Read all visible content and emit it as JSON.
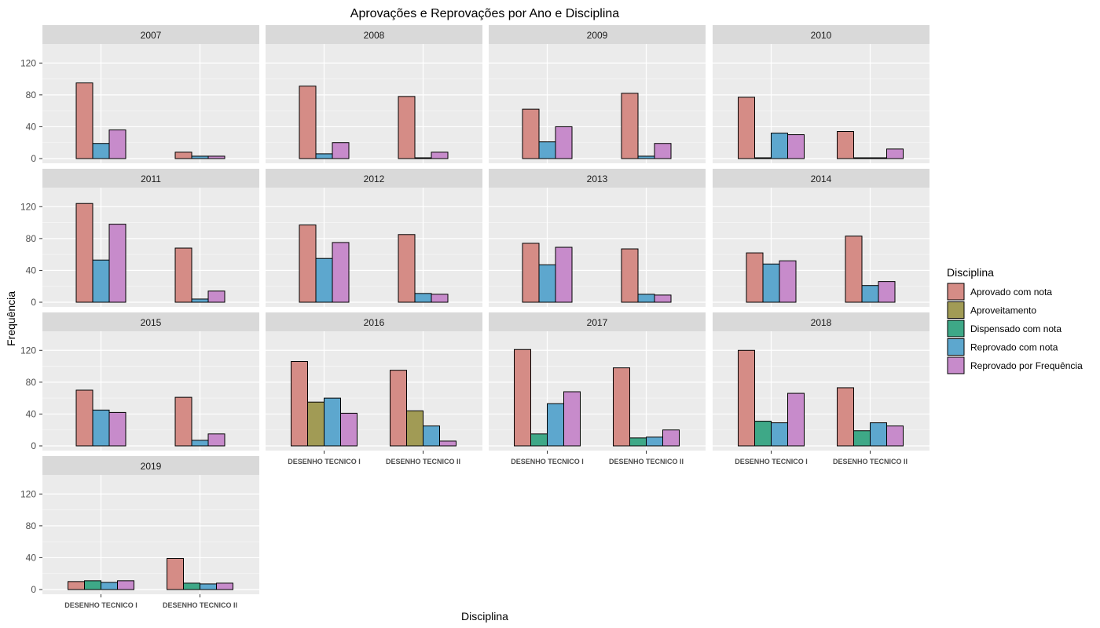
{
  "chart_data": {
    "type": "bar",
    "title": "Aprovações e Reprovações por Ano e Disciplina",
    "xlabel": "Disciplina",
    "ylabel": "Frequência",
    "ylim": [
      0,
      140
    ],
    "yticks": [
      0,
      40,
      80,
      120
    ],
    "grid": true,
    "legend_title": "Disciplina",
    "legend_position": "right",
    "categories": [
      "DESENHO TECNICO I",
      "DESENHO TECNICO II"
    ],
    "series_defs": [
      {
        "name": "Aprovado com nota",
        "color": "#D58C86"
      },
      {
        "name": "Aproveitamento",
        "color": "#A19B55"
      },
      {
        "name": "Dispensado com nota",
        "color": "#3EA887"
      },
      {
        "name": "Reprovado com nota",
        "color": "#5DA7CE"
      },
      {
        "name": "Reprovado por Frequência",
        "color": "#C78BCB"
      }
    ],
    "panels": [
      {
        "year": "2007",
        "bars": [
          [
            [
              0,
              95
            ],
            [
              3,
              19
            ],
            [
              4,
              36
            ]
          ],
          [
            [
              0,
              8
            ],
            [
              3,
              3
            ],
            [
              4,
              3
            ]
          ]
        ]
      },
      {
        "year": "2008",
        "bars": [
          [
            [
              0,
              91
            ],
            [
              3,
              6
            ],
            [
              4,
              20
            ]
          ],
          [
            [
              0,
              78
            ],
            [
              3,
              1
            ],
            [
              4,
              8
            ]
          ]
        ]
      },
      {
        "year": "2009",
        "bars": [
          [
            [
              0,
              62
            ],
            [
              3,
              21
            ],
            [
              4,
              40
            ]
          ],
          [
            [
              0,
              82
            ],
            [
              3,
              3
            ],
            [
              4,
              19
            ]
          ]
        ]
      },
      {
        "year": "2010",
        "bars": [
          [
            [
              0,
              77
            ],
            [
              2,
              1
            ],
            [
              3,
              32
            ],
            [
              4,
              30
            ]
          ],
          [
            [
              0,
              34
            ],
            [
              2,
              1
            ],
            [
              3,
              1
            ],
            [
              4,
              12
            ]
          ]
        ]
      },
      {
        "year": "2011",
        "bars": [
          [
            [
              0,
              124
            ],
            [
              3,
              53
            ],
            [
              4,
              98
            ]
          ],
          [
            [
              0,
              68
            ],
            [
              3,
              4
            ],
            [
              4,
              14
            ]
          ]
        ]
      },
      {
        "year": "2012",
        "bars": [
          [
            [
              0,
              97
            ],
            [
              3,
              55
            ],
            [
              4,
              75
            ]
          ],
          [
            [
              0,
              85
            ],
            [
              3,
              11
            ],
            [
              4,
              10
            ]
          ]
        ]
      },
      {
        "year": "2013",
        "bars": [
          [
            [
              0,
              74
            ],
            [
              3,
              47
            ],
            [
              4,
              69
            ]
          ],
          [
            [
              0,
              67
            ],
            [
              3,
              10
            ],
            [
              4,
              9
            ]
          ]
        ]
      },
      {
        "year": "2014",
        "bars": [
          [
            [
              0,
              62
            ],
            [
              3,
              48
            ],
            [
              4,
              52
            ]
          ],
          [
            [
              0,
              83
            ],
            [
              3,
              21
            ],
            [
              4,
              26
            ]
          ]
        ]
      },
      {
        "year": "2015",
        "bars": [
          [
            [
              0,
              70
            ],
            [
              3,
              45
            ],
            [
              4,
              42
            ]
          ],
          [
            [
              0,
              61
            ],
            [
              3,
              7
            ],
            [
              4,
              15
            ]
          ]
        ]
      },
      {
        "year": "2016",
        "bars": [
          [
            [
              0,
              106
            ],
            [
              1,
              55
            ],
            [
              3,
              60
            ],
            [
              4,
              41
            ]
          ],
          [
            [
              0,
              95
            ],
            [
              1,
              44
            ],
            [
              3,
              25
            ],
            [
              4,
              6
            ]
          ]
        ]
      },
      {
        "year": "2017",
        "bars": [
          [
            [
              0,
              121
            ],
            [
              2,
              15
            ],
            [
              3,
              53
            ],
            [
              4,
              68
            ]
          ],
          [
            [
              0,
              98
            ],
            [
              2,
              10
            ],
            [
              3,
              11
            ],
            [
              4,
              20
            ]
          ]
        ]
      },
      {
        "year": "2018",
        "bars": [
          [
            [
              0,
              120
            ],
            [
              2,
              31
            ],
            [
              3,
              29
            ],
            [
              4,
              66
            ]
          ],
          [
            [
              0,
              73
            ],
            [
              2,
              19
            ],
            [
              3,
              29
            ],
            [
              4,
              25
            ]
          ]
        ]
      },
      {
        "year": "2019",
        "bars": [
          [
            [
              0,
              10
            ],
            [
              2,
              11
            ],
            [
              3,
              9
            ],
            [
              4,
              11
            ]
          ],
          [
            [
              0,
              39
            ],
            [
              2,
              8
            ],
            [
              3,
              7
            ],
            [
              4,
              8
            ]
          ]
        ]
      }
    ]
  }
}
